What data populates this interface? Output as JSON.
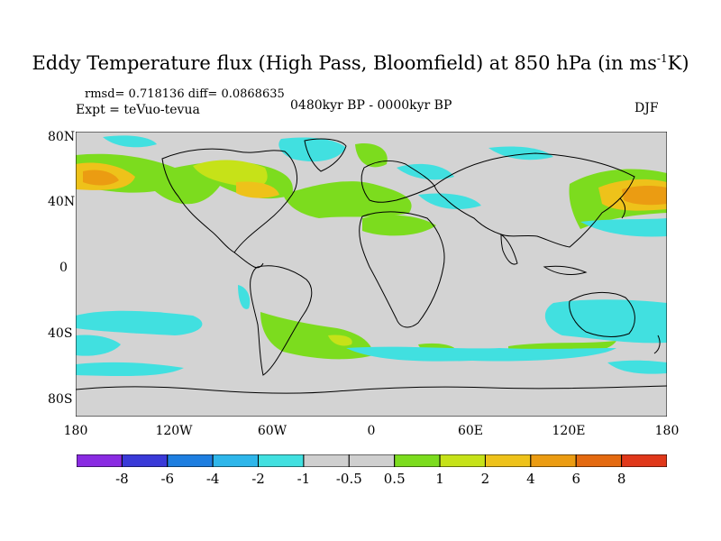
{
  "title": "Eddy Temperature flux (High Pass, Bloomfield) at 850 hPa (in ms",
  "title_sup": "-1",
  "title_end": "K)",
  "stats": "rmsd= 0.718136 diff= 0.0868635",
  "experiment": "Expt = teVuo-tevua",
  "period": "0480kyr BP - 0000kyr BP",
  "season": "DJF",
  "lat_labels": [
    "80N",
    "40N",
    "0",
    "40S",
    "80S"
  ],
  "lon_labels": [
    "180",
    "120W",
    "60W",
    "0",
    "60E",
    "120E",
    "180"
  ],
  "colorbar": {
    "colors": [
      "#8a2be2",
      "#3a3ad8",
      "#1e7ee0",
      "#2eb6ea",
      "#41e0e0",
      "#cfcfcf",
      "#cfcfcf",
      "#7cdc1e",
      "#c6e218",
      "#eec21a",
      "#eb9c12",
      "#e46a10",
      "#e0381a"
    ],
    "labels": [
      "-8",
      "-6",
      "-4",
      "-2",
      "-1",
      "-0.5",
      "0.5",
      "1",
      "2",
      "4",
      "6",
      "8"
    ]
  },
  "map_colors": {
    "ocean": "#d3d3d3",
    "coast": "#000000"
  }
}
